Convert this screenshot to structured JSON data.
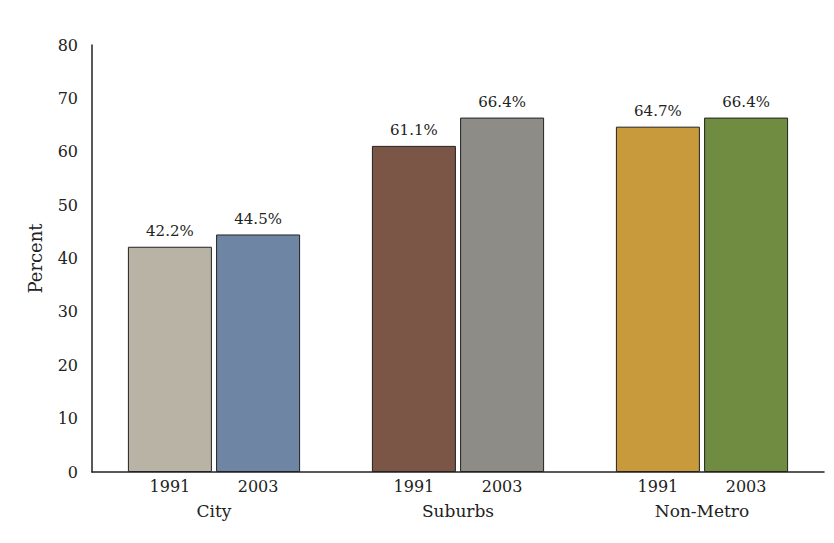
{
  "chart_data": {
    "type": "bar",
    "y_label": "Percent",
    "categories": [
      "City",
      "Suburbs",
      "Non-Metro"
    ],
    "series": [
      {
        "name": "1991",
        "values": [
          42.2,
          61.1,
          64.7
        ],
        "value_labels": [
          "42.2%",
          "61.1%",
          "64.7%"
        ],
        "colors": [
          "#b9b3a6",
          "#7b5646",
          "#c99a3c"
        ]
      },
      {
        "name": "2003",
        "values": [
          44.5,
          66.4,
          66.4
        ],
        "value_labels": [
          "44.5%",
          "66.4%",
          "66.4%"
        ],
        "colors": [
          "#6e86a3",
          "#8d8c87",
          "#6f8c40"
        ]
      }
    ],
    "ylim": [
      0,
      80
    ],
    "yticks": [
      0,
      10,
      20,
      30,
      40,
      50,
      60,
      70,
      80
    ],
    "grid": false,
    "data_labels": true
  }
}
